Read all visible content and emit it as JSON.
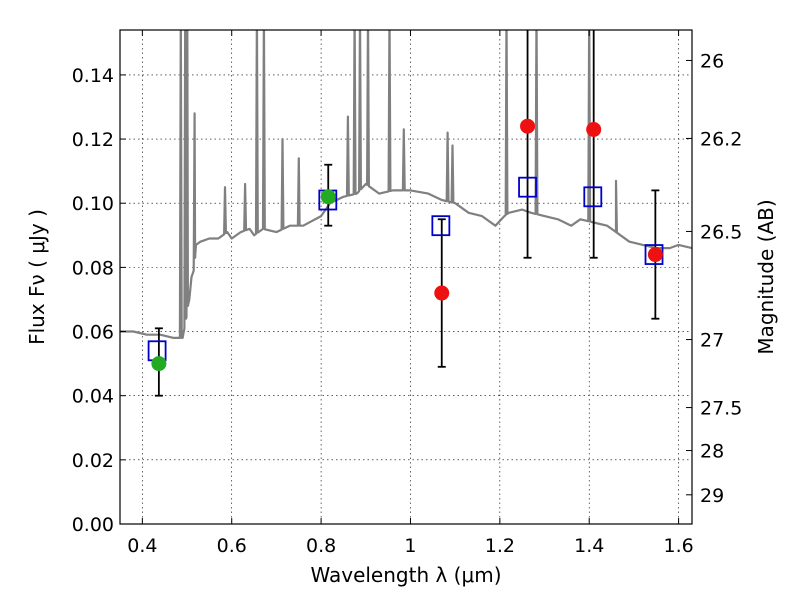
{
  "chart_data": {
    "type": "scatter",
    "xlabel": "Wavelength  λ (μm)",
    "ylabel": "Flux  Fν  ( μJy )",
    "ylabel_right": "Magnitude (AB)",
    "xlim": [
      0.35,
      1.63
    ],
    "ylim": [
      0.0,
      0.154
    ],
    "grid": true,
    "x_ticks": [
      0.4,
      0.6,
      0.8,
      1.0,
      1.2,
      1.4,
      1.6
    ],
    "x_tick_labels": [
      "0.4",
      "0.6",
      "0.8",
      "1",
      "1.2",
      "1.4",
      "1.6"
    ],
    "y_ticks": [
      0.0,
      0.02,
      0.04,
      0.06,
      0.08,
      0.1,
      0.12,
      0.14
    ],
    "y_tick_labels": [
      "0.00",
      "0.02",
      "0.04",
      "0.06",
      "0.08",
      "0.10",
      "0.12",
      "0.14"
    ],
    "right_ticks": [
      {
        "label": "26",
        "flux": 0.1445
      },
      {
        "label": "26.2",
        "flux": 0.1202
      },
      {
        "label": "26.5",
        "flux": 0.0912
      },
      {
        "label": "27",
        "flux": 0.0575
      },
      {
        "label": "27.5",
        "flux": 0.0363
      },
      {
        "label": "28",
        "flux": 0.0229
      },
      {
        "label": "29",
        "flux": 0.0091
      }
    ],
    "colors": {
      "spectrum": "#808080",
      "model_box": "#0000cc",
      "green_points": "#22aa22",
      "red_points": "#ee1111",
      "errorbar": "#000000"
    },
    "spectrum": {
      "x": [
        0.35,
        0.38,
        0.41,
        0.44,
        0.47,
        0.49,
        0.498,
        0.502,
        0.505,
        0.51,
        0.515,
        0.518,
        0.52,
        0.53,
        0.55,
        0.57,
        0.59,
        0.6,
        0.62,
        0.64,
        0.65,
        0.66,
        0.67,
        0.7,
        0.73,
        0.76,
        0.8,
        0.82,
        0.85,
        0.88,
        0.9,
        0.93,
        0.96,
        1.0,
        1.04,
        1.07,
        1.1,
        1.13,
        1.16,
        1.19,
        1.21,
        1.22,
        1.25,
        1.27,
        1.3,
        1.33,
        1.36,
        1.38,
        1.41,
        1.44,
        1.46,
        1.49,
        1.52,
        1.55,
        1.58,
        1.6,
        1.63
      ],
      "y": [
        0.06,
        0.06,
        0.059,
        0.059,
        0.058,
        0.058,
        0.064,
        0.068,
        0.07,
        0.077,
        0.079,
        0.083,
        0.087,
        0.088,
        0.089,
        0.089,
        0.091,
        0.089,
        0.091,
        0.092,
        0.09,
        0.091,
        0.092,
        0.091,
        0.093,
        0.093,
        0.096,
        0.1,
        0.102,
        0.103,
        0.106,
        0.103,
        0.104,
        0.104,
        0.103,
        0.101,
        0.1,
        0.097,
        0.096,
        0.093,
        0.096,
        0.097,
        0.098,
        0.097,
        0.096,
        0.095,
        0.093,
        0.095,
        0.094,
        0.093,
        0.091,
        0.088,
        0.087,
        0.086,
        0.086,
        0.087,
        0.086
      ]
    },
    "emission_lines": [
      {
        "x": 0.486,
        "peak": 0.16
      },
      {
        "x": 0.496,
        "peak": 0.16
      },
      {
        "x": 0.5007,
        "peak": 0.16
      },
      {
        "x": 0.517,
        "peak": 0.128
      },
      {
        "x": 0.585,
        "peak": 0.105
      },
      {
        "x": 0.63,
        "peak": 0.106
      },
      {
        "x": 0.6563,
        "peak": 0.16
      },
      {
        "x": 0.672,
        "peak": 0.16
      },
      {
        "x": 0.7136,
        "peak": 0.12
      },
      {
        "x": 0.75,
        "peak": 0.114
      },
      {
        "x": 0.86,
        "peak": 0.127
      },
      {
        "x": 0.875,
        "peak": 0.16
      },
      {
        "x": 0.887,
        "peak": 0.16
      },
      {
        "x": 0.905,
        "peak": 0.16
      },
      {
        "x": 0.953,
        "peak": 0.16
      },
      {
        "x": 0.985,
        "peak": 0.123
      },
      {
        "x": 1.083,
        "peak": 0.122
      },
      {
        "x": 1.094,
        "peak": 0.118
      },
      {
        "x": 1.215,
        "peak": 0.16
      },
      {
        "x": 1.282,
        "peak": 0.16
      },
      {
        "x": 1.4,
        "peak": 0.16
      },
      {
        "x": 1.46,
        "peak": 0.107
      }
    ],
    "model_boxes": [
      {
        "x": 0.433,
        "y": 0.054
      },
      {
        "x": 0.815,
        "y": 0.101
      },
      {
        "x": 1.068,
        "y": 0.093
      },
      {
        "x": 1.262,
        "y": 0.105
      },
      {
        "x": 1.408,
        "y": 0.102
      },
      {
        "x": 1.545,
        "y": 0.084
      }
    ],
    "green_points": [
      {
        "x": 0.437,
        "y": 0.05,
        "yerr_low": 0.04,
        "yerr_high": 0.061
      },
      {
        "x": 0.816,
        "y": 0.102,
        "yerr_low": 0.093,
        "yerr_high": 0.112
      }
    ],
    "red_points": [
      {
        "x": 1.07,
        "y": 0.072,
        "yerr_low": 0.049,
        "yerr_high": 0.095
      },
      {
        "x": 1.262,
        "y": 0.124,
        "yerr_low": 0.083,
        "yerr_high": 0.16
      },
      {
        "x": 1.41,
        "y": 0.123,
        "yerr_low": 0.083,
        "yerr_high": 0.16
      },
      {
        "x": 1.548,
        "y": 0.084,
        "yerr_low": 0.064,
        "yerr_high": 0.104
      }
    ]
  }
}
